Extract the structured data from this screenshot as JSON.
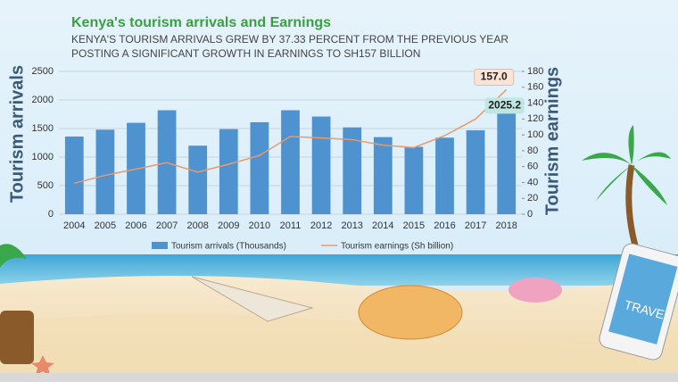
{
  "chart_data": {
    "type": "bar-line",
    "title": "Kenya's tourism arrivals and Earnings",
    "subtitle": "KENYA'S TOURISM ARRIVALS GREW BY 37.33 PERCENT FROM THE PREVIOUS YEAR POSTING A SIGNIFICANT GROWTH IN EARNINGS TO SH157 BILLION",
    "y_label": "Tourism arrivals",
    "y2_label": "Tourism earnings",
    "categories": [
      "2004",
      "2005",
      "2006",
      "2007",
      "2008",
      "2009",
      "2010",
      "2011",
      "2012",
      "2013",
      "2014",
      "2015",
      "2016",
      "2017",
      "2018"
    ],
    "series": [
      {
        "name": "Tourism arrivals (Thousands)",
        "type": "bar",
        "color": "#4f92d0",
        "values": [
          1360,
          1480,
          1600,
          1820,
          1200,
          1490,
          1610,
          1820,
          1710,
          1520,
          1350,
          1180,
          1340,
          1470,
          2025.2
        ],
        "value_labels": [
          null,
          null,
          null,
          null,
          null,
          null,
          null,
          null,
          null,
          null,
          null,
          null,
          null,
          null,
          "2025.2"
        ]
      },
      {
        "name": "Tourism earnings (Sh billion)",
        "type": "line",
        "axis": "y2",
        "color": "#e89a6a",
        "values": [
          39,
          49,
          57,
          65,
          53,
          63,
          74,
          98,
          96,
          94,
          87,
          84,
          99,
          120,
          157
        ],
        "value_labels": [
          null,
          null,
          null,
          null,
          null,
          null,
          null,
          null,
          null,
          null,
          null,
          null,
          null,
          null,
          "157.0"
        ]
      }
    ],
    "ylim": [
      0,
      2500
    ],
    "yticks": [
      0,
      500,
      1000,
      1500,
      2000,
      2500
    ],
    "y2lim": [
      0,
      180
    ],
    "y2ticks": [
      0,
      20,
      40,
      60,
      80,
      100,
      120,
      140,
      160,
      180
    ],
    "grid": true
  },
  "phone_screen_text": "TRAVE"
}
